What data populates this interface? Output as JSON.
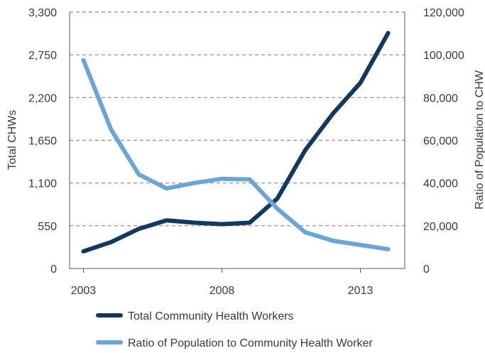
{
  "chart_data": {
    "type": "line",
    "title": "",
    "xlabel": "",
    "ylabel": "Total CHWs",
    "ylabel_right": "Ratio of Population to CHW",
    "x": [
      2003,
      2004,
      2005,
      2006,
      2007,
      2008,
      2009,
      2010,
      2011,
      2012,
      2013,
      2014
    ],
    "x_ticks": [
      "2003",
      "2008",
      "2013"
    ],
    "xlim": [
      2002.5,
      2014.6
    ],
    "ylim": [
      0,
      3300
    ],
    "y_ticks": [
      "0",
      "550",
      "1,100",
      "1,650",
      "2,200",
      "2,750",
      "3,300"
    ],
    "ylim_right": [
      0,
      120000
    ],
    "y_ticks_right": [
      "0",
      "20,000",
      "40,000",
      "60,000",
      "80,000",
      "100,000",
      "120,000"
    ],
    "grid": "horizontal-dashed",
    "legend_position": "bottom",
    "series": [
      {
        "name": "Total Community Health Workers",
        "axis": "left",
        "color": "#14375e",
        "values": [
          220,
          340,
          510,
          620,
          590,
          570,
          590,
          900,
          1520,
          1990,
          2390,
          3030
        ]
      },
      {
        "name": "Ratio of Population to Community Health Worker",
        "axis": "right",
        "color": "#6aa5d6",
        "values": [
          97500,
          65000,
          44000,
          37500,
          40000,
          42000,
          41700,
          28000,
          17000,
          13000,
          11000,
          9000
        ]
      }
    ]
  }
}
